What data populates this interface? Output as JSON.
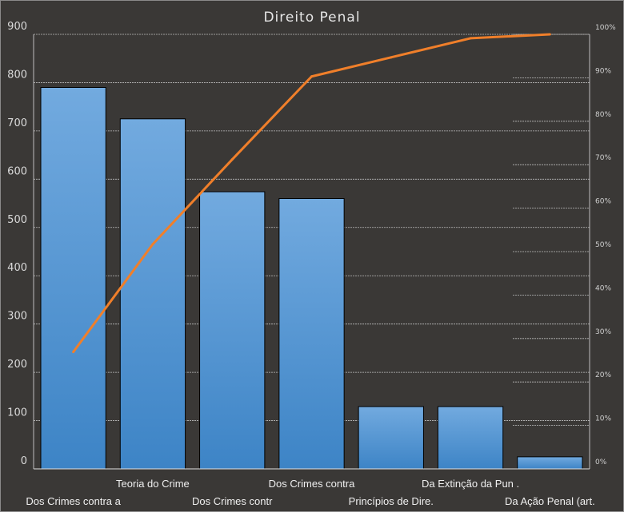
{
  "chart_data": {
    "type": "bar",
    "subtype": "pareto",
    "title": "Direito Penal",
    "categories": [
      "Dos Crimes contra a",
      "Teoria do Crime",
      "Dos Crimes contr",
      "Dos Crimes contra",
      "Princípios de Dire.",
      "Da Extinção da Pun .",
      "Da Ação Penal (art."
    ],
    "values": [
      790,
      725,
      574,
      560,
      129,
      129,
      25
    ],
    "cumulative_percent": [
      26.9,
      51.7,
      71.2,
      90.3,
      94.7,
      99.1,
      100
    ],
    "ylim": [
      0,
      900
    ],
    "yticks": [
      "0",
      "100",
      "200",
      "300",
      "400",
      "500",
      "600",
      "700",
      "800",
      "900"
    ],
    "y2lim": [
      0,
      100
    ],
    "y2ticks": [
      "0%",
      "10%",
      "20%",
      "30%",
      "40%",
      "50%",
      "60%",
      "70%",
      "80%",
      "90%",
      "100%"
    ],
    "grid": true,
    "legend": "none",
    "colors": {
      "bar_top": "#72aadf",
      "bar_bottom": "#3d84c6",
      "line": "#f07f2a",
      "background": "#3a3836"
    }
  }
}
